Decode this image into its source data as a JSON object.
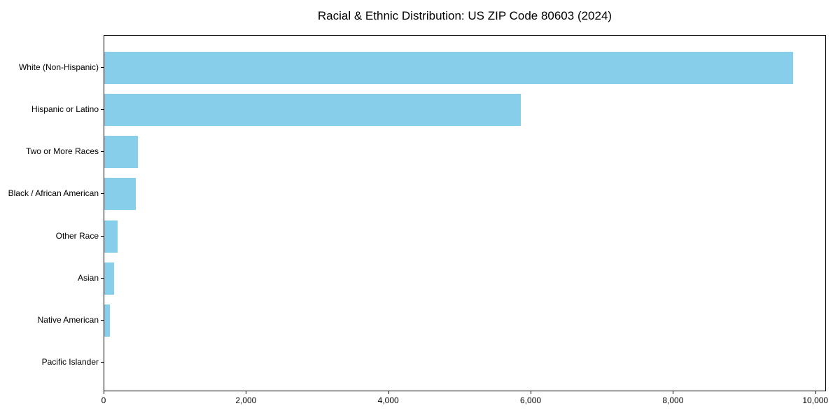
{
  "chart_data": {
    "type": "bar",
    "orientation": "horizontal",
    "title": "Racial & Ethnic Distribution: US ZIP Code 80603 (2024)",
    "categories": [
      "White (Non-Hispanic)",
      "Hispanic or Latino",
      "Two or More Races",
      "Black / African American",
      "Other Race",
      "Asian",
      "Native American",
      "Pacific Islander"
    ],
    "values": [
      9675,
      5850,
      470,
      445,
      185,
      135,
      80,
      0
    ],
    "xlabel": "",
    "ylabel": "",
    "xlim": [
      0,
      10150
    ],
    "x_ticks": [
      0,
      2000,
      4000,
      6000,
      8000,
      10000
    ],
    "x_tick_labels": [
      "0",
      "2,000",
      "4,000",
      "6,000",
      "8,000",
      "10,000"
    ],
    "bar_color": "#87CEEB",
    "frame_color": "#000000",
    "text_color": "#000000",
    "background_color": "#ffffff",
    "grid": false,
    "legend": false
  }
}
